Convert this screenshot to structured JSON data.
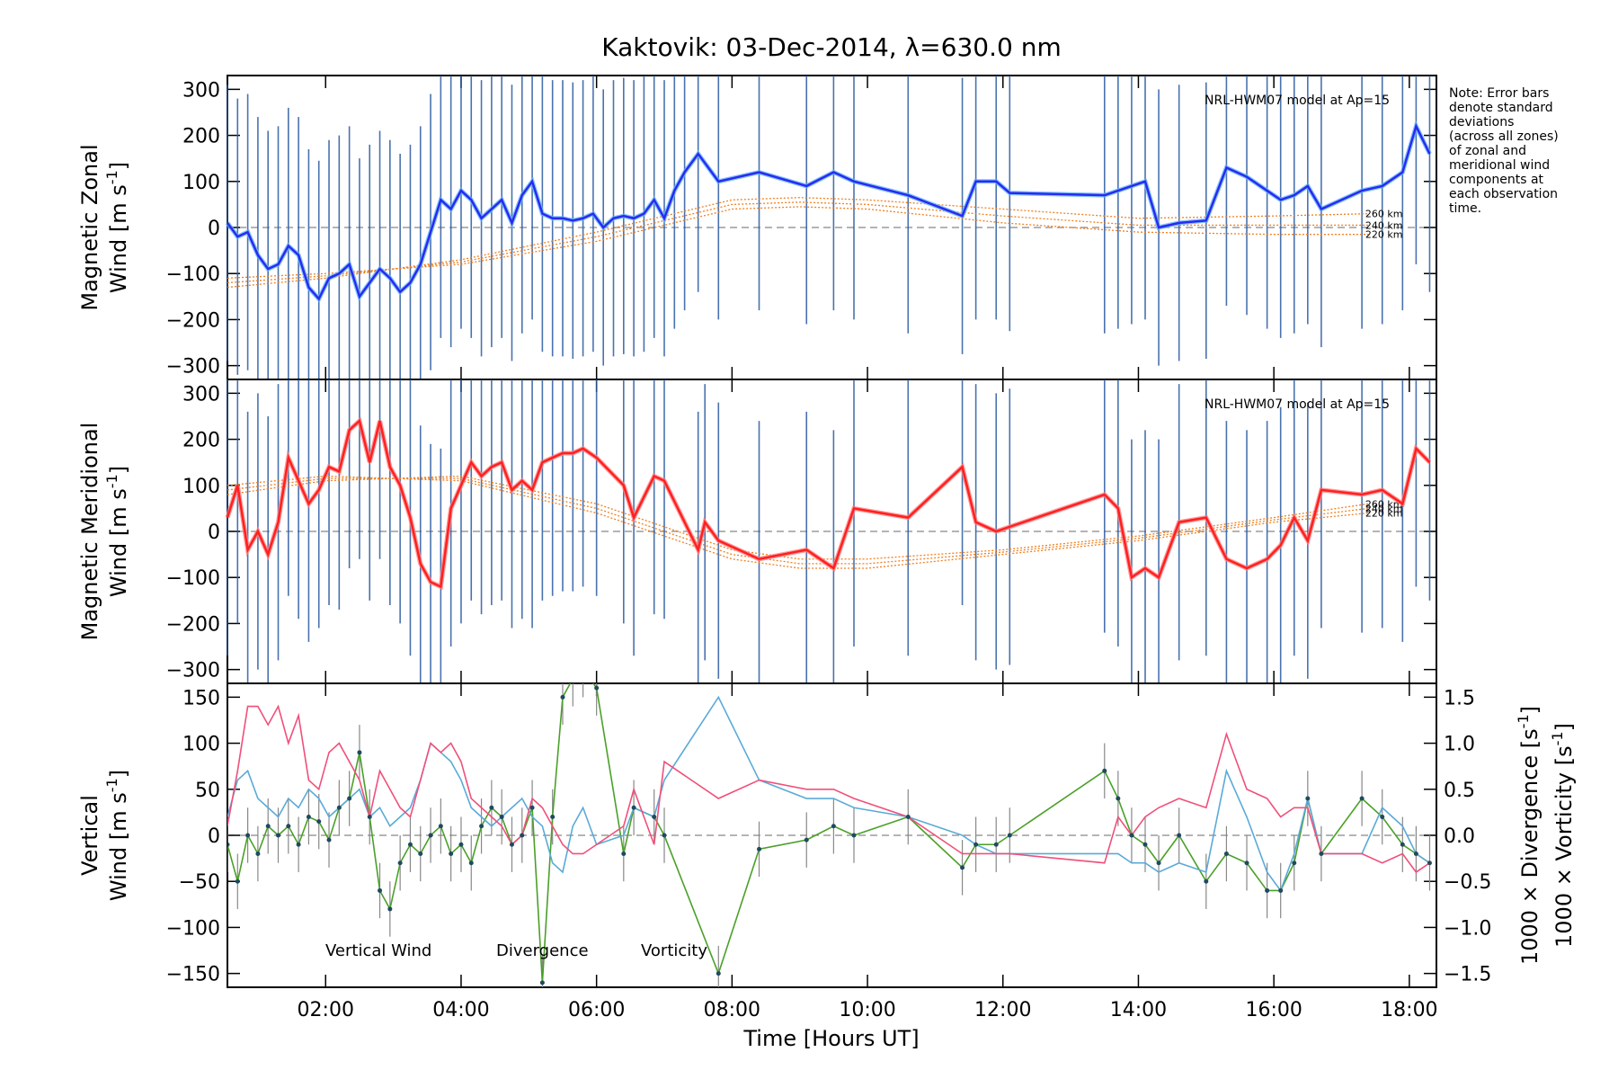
{
  "title": "Kaktovik: 03-Dec-2014, λ=630.0 nm",
  "note": [
    "Note: Error bars",
    "denote standard",
    "deviations",
    "(across all zones)",
    "of zonal and",
    "meridional wind",
    "components at",
    "each observation",
    "time."
  ],
  "colors": {
    "zonal": "#2a2af0",
    "zonal_light": "#5fb4ff",
    "meridional": "#ff2020",
    "meridional_light": "#ff8080",
    "model": "#f08020",
    "errorbar": "#2a5aa0",
    "vertical": "#4aa028",
    "divergence": "#5aaad8",
    "vorticity": "#f0507a"
  },
  "chart_data": [
    {
      "type": "line",
      "panel": "zonal",
      "ylabel_lines": [
        "Magnetic Zonal",
        "Wind [m s",
        "-1",
        "]"
      ],
      "ylim": [
        -330,
        330
      ],
      "yticks": [
        300,
        200,
        100,
        0,
        -100,
        -200,
        -300
      ],
      "xlim": [
        0.55,
        18.4
      ],
      "model_label": "NRL-HWM07 model at Ap=15",
      "model_altitudes": [
        "260 km",
        "240 km",
        "220 km"
      ],
      "series": [
        {
          "name": "zonal",
          "x": [
            0.55,
            0.7,
            0.85,
            1.0,
            1.15,
            1.3,
            1.45,
            1.6,
            1.75,
            1.9,
            2.05,
            2.2,
            2.35,
            2.5,
            2.65,
            2.8,
            2.95,
            3.1,
            3.25,
            3.4,
            3.55,
            3.7,
            3.85,
            4.0,
            4.15,
            4.3,
            4.45,
            4.6,
            4.75,
            4.9,
            5.05,
            5.2,
            5.35,
            5.5,
            5.65,
            5.8,
            5.95,
            6.1,
            6.25,
            6.4,
            6.55,
            6.7,
            6.85,
            7.0,
            7.15,
            7.3,
            7.5,
            7.8,
            8.4,
            9.1,
            9.5,
            9.8,
            10.6,
            11.4,
            11.6,
            11.9,
            12.1,
            13.5,
            13.7,
            13.9,
            14.1,
            14.3,
            14.6,
            15.0,
            15.3,
            15.6,
            15.9,
            16.1,
            16.3,
            16.5,
            16.7,
            17.3,
            17.6,
            17.9,
            18.1,
            18.3
          ],
          "y": [
            10,
            -20,
            -10,
            -60,
            -90,
            -80,
            -40,
            -60,
            -130,
            -155,
            -110,
            -100,
            -80,
            -150,
            -120,
            -90,
            -110,
            -140,
            -120,
            -80,
            -10,
            60,
            40,
            80,
            60,
            20,
            40,
            60,
            10,
            70,
            100,
            30,
            20,
            20,
            15,
            20,
            30,
            0,
            20,
            25,
            20,
            30,
            60,
            20,
            80,
            120,
            160,
            100,
            120,
            90,
            120,
            100,
            70,
            25,
            100,
            100,
            75,
            70,
            80,
            90,
            100,
            0,
            10,
            15,
            130,
            110,
            80,
            60,
            70,
            90,
            40,
            80,
            90,
            120,
            220,
            160
          ]
        }
      ],
      "model": [
        {
          "name": "260 km",
          "x": [
            0.55,
            2,
            4,
            6,
            8,
            9,
            10,
            12,
            14,
            16,
            17.4
          ],
          "y": [
            -130,
            -110,
            -70,
            -10,
            60,
            65,
            60,
            40,
            20,
            25,
            30
          ]
        },
        {
          "name": "240 km",
          "x": [
            0.55,
            2,
            4,
            6,
            8,
            9,
            10,
            12,
            14,
            16,
            17.4
          ],
          "y": [
            -120,
            -105,
            -75,
            -20,
            50,
            55,
            50,
            25,
            5,
            5,
            5
          ]
        },
        {
          "name": "220 km",
          "x": [
            0.55,
            2,
            4,
            6,
            8,
            9,
            10,
            12,
            14,
            16,
            17.4
          ],
          "y": [
            -110,
            -100,
            -80,
            -30,
            40,
            45,
            40,
            10,
            -10,
            -15,
            -15
          ]
        }
      ]
    },
    {
      "type": "line",
      "panel": "meridional",
      "ylabel_lines": [
        "Magnetic Meridional",
        "Wind [m s",
        "-1",
        "]"
      ],
      "ylim": [
        -330,
        330
      ],
      "yticks": [
        300,
        200,
        100,
        0,
        -100,
        -200,
        -300
      ],
      "xlim": [
        0.55,
        18.4
      ],
      "model_label": "NRL-HWM07 model at Ap=15",
      "model_altitudes": [
        "260 km",
        "240 km",
        "220 km"
      ],
      "series": [
        {
          "name": "meridional",
          "x": [
            0.55,
            0.7,
            0.85,
            1.0,
            1.15,
            1.3,
            1.45,
            1.6,
            1.75,
            1.9,
            2.05,
            2.2,
            2.35,
            2.5,
            2.65,
            2.8,
            2.95,
            3.1,
            3.25,
            3.4,
            3.55,
            3.7,
            3.85,
            4.0,
            4.15,
            4.3,
            4.45,
            4.6,
            4.75,
            4.9,
            5.05,
            5.2,
            5.35,
            5.5,
            5.65,
            5.8,
            6.0,
            6.4,
            6.55,
            6.85,
            7.0,
            7.5,
            7.6,
            7.8,
            8.4,
            9.1,
            9.5,
            9.8,
            10.6,
            11.4,
            11.6,
            11.9,
            12.1,
            13.5,
            13.7,
            13.9,
            14.1,
            14.3,
            14.6,
            15.0,
            15.3,
            15.6,
            15.9,
            16.1,
            16.3,
            16.5,
            16.7,
            17.3,
            17.6,
            17.9,
            18.1,
            18.3
          ],
          "y": [
            30,
            100,
            -40,
            0,
            -50,
            20,
            160,
            110,
            60,
            90,
            140,
            130,
            220,
            240,
            150,
            240,
            140,
            100,
            30,
            -70,
            -110,
            -120,
            50,
            100,
            150,
            120,
            140,
            150,
            90,
            110,
            90,
            150,
            160,
            170,
            170,
            180,
            160,
            100,
            30,
            120,
            110,
            -40,
            20,
            -20,
            -60,
            -40,
            -80,
            50,
            30,
            140,
            20,
            0,
            10,
            80,
            50,
            -100,
            -80,
            -100,
            20,
            30,
            -60,
            -80,
            -60,
            -30,
            30,
            -20,
            90,
            80,
            90,
            60,
            180,
            150
          ]
        }
      ],
      "model": [
        {
          "name": "260 km",
          "x": [
            0.55,
            2,
            4,
            6,
            8,
            9,
            10,
            12,
            14,
            16,
            17.4
          ],
          "y": [
            80,
            110,
            120,
            60,
            -40,
            -60,
            -60,
            -40,
            -10,
            30,
            60
          ]
        },
        {
          "name": "240 km",
          "x": [
            0.55,
            2,
            4,
            6,
            8,
            9,
            10,
            12,
            14,
            16,
            17.4
          ],
          "y": [
            90,
            115,
            115,
            50,
            -50,
            -70,
            -70,
            -45,
            -15,
            25,
            50
          ]
        },
        {
          "name": "220 km",
          "x": [
            0.55,
            2,
            4,
            6,
            8,
            9,
            10,
            12,
            14,
            16,
            17.4
          ],
          "y": [
            100,
            120,
            110,
            40,
            -60,
            -80,
            -80,
            -50,
            -20,
            20,
            40
          ]
        }
      ]
    },
    {
      "type": "line",
      "panel": "vertical",
      "ylabel_lines": [
        "Vertical",
        "Wind [m s",
        "-1",
        "]"
      ],
      "ylim": [
        -165,
        165
      ],
      "yticks": [
        150,
        100,
        50,
        0,
        -50,
        -100,
        -150
      ],
      "right_ylim": [
        -1.65,
        1.65
      ],
      "right_yticks": [
        1.5,
        1.0,
        0.5,
        0.0,
        -0.5,
        -1.0,
        -1.5
      ],
      "right_labels": [
        "1000 × Divergence [s",
        "1000 × Vorticity [s",
        "-1",
        "]"
      ],
      "xlim": [
        0.55,
        18.4
      ],
      "xticks": [
        2,
        4,
        6,
        8,
        10,
        12,
        14,
        16,
        18
      ],
      "xtick_labels": [
        "02:00",
        "04:00",
        "06:00",
        "08:00",
        "10:00",
        "12:00",
        "14:00",
        "16:00",
        "18:00"
      ],
      "xlabel": "Time [Hours UT]",
      "legend": [
        "Vertical Wind",
        "Divergence",
        "Vorticity"
      ],
      "series": [
        {
          "name": "Vertical Wind",
          "x": [
            0.55,
            0.7,
            0.85,
            1.0,
            1.15,
            1.3,
            1.45,
            1.6,
            1.75,
            1.9,
            2.05,
            2.2,
            2.35,
            2.5,
            2.65,
            2.8,
            2.95,
            3.1,
            3.25,
            3.4,
            3.55,
            3.7,
            3.85,
            4.0,
            4.15,
            4.3,
            4.45,
            4.6,
            4.75,
            4.9,
            5.05,
            5.2,
            5.35,
            5.5,
            5.65,
            5.8,
            6.0,
            6.4,
            6.55,
            6.85,
            7.0,
            7.8,
            8.4,
            9.1,
            9.5,
            9.8,
            10.6,
            11.4,
            11.6,
            11.9,
            12.1,
            13.5,
            13.7,
            13.9,
            14.1,
            14.3,
            14.6,
            15.0,
            15.3,
            15.6,
            15.9,
            16.1,
            16.3,
            16.5,
            16.7,
            17.3,
            17.6,
            17.9,
            18.1,
            18.3
          ],
          "y": [
            -10,
            -50,
            0,
            -20,
            10,
            0,
            10,
            -10,
            20,
            15,
            -5,
            30,
            40,
            90,
            20,
            -60,
            -80,
            -30,
            -10,
            -20,
            0,
            10,
            -20,
            -10,
            -30,
            10,
            30,
            20,
            -10,
            0,
            30,
            -160,
            20,
            150,
            170,
            180,
            160,
            -20,
            30,
            20,
            0,
            -150,
            -15,
            -5,
            10,
            0,
            20,
            -35,
            -10,
            -10,
            0,
            70,
            40,
            0,
            -10,
            -30,
            0,
            -50,
            -20,
            -30,
            -60,
            -60,
            -30,
            40,
            -20,
            40,
            20,
            -10,
            -20,
            -30
          ]
        },
        {
          "name": "Divergence",
          "x": [
            0.55,
            0.7,
            0.85,
            1.0,
            1.15,
            1.3,
            1.45,
            1.6,
            1.75,
            1.9,
            2.05,
            2.2,
            2.35,
            2.5,
            2.65,
            2.8,
            2.95,
            3.1,
            3.25,
            3.4,
            3.55,
            3.7,
            3.85,
            4.0,
            4.15,
            4.3,
            4.45,
            4.6,
            4.75,
            4.9,
            5.05,
            5.2,
            5.35,
            5.5,
            5.65,
            5.8,
            6.0,
            6.4,
            6.55,
            6.85,
            7.0,
            7.8,
            8.4,
            9.1,
            9.5,
            9.8,
            10.6,
            11.4,
            11.6,
            11.9,
            12.1,
            13.5,
            13.7,
            13.9,
            14.1,
            14.3,
            14.6,
            15.0,
            15.3,
            15.6,
            15.9,
            16.1,
            16.3,
            16.5,
            16.7,
            17.3,
            17.6,
            17.9,
            18.1,
            18.3
          ],
          "y": [
            0.2,
            0.6,
            0.7,
            0.4,
            0.3,
            0.2,
            0.4,
            0.3,
            0.5,
            0.4,
            0.2,
            0.3,
            0.4,
            0.5,
            0.2,
            0.3,
            0.1,
            0.2,
            0.3,
            0.6,
            1.0,
            0.9,
            0.8,
            0.6,
            0.3,
            0.2,
            0.1,
            0.2,
            0.3,
            0.4,
            0.2,
            0.1,
            -0.3,
            -0.4,
            0.1,
            0.3,
            -0.1,
            0.0,
            0.3,
            0.2,
            0.6,
            1.5,
            0.6,
            0.4,
            0.4,
            0.3,
            0.2,
            0.0,
            -0.1,
            -0.2,
            -0.2,
            -0.2,
            -0.2,
            -0.3,
            -0.3,
            -0.4,
            -0.3,
            -0.4,
            0.7,
            0.2,
            -0.4,
            -0.6,
            -0.2,
            0.4,
            -0.2,
            -0.2,
            0.3,
            0.1,
            -0.2,
            -0.3
          ]
        },
        {
          "name": "Vorticity",
          "x": [
            0.55,
            0.7,
            0.85,
            1.0,
            1.15,
            1.3,
            1.45,
            1.6,
            1.75,
            1.9,
            2.05,
            2.2,
            2.35,
            2.5,
            2.65,
            2.8,
            2.95,
            3.1,
            3.25,
            3.4,
            3.55,
            3.7,
            3.85,
            4.0,
            4.15,
            4.3,
            4.45,
            4.6,
            4.75,
            4.9,
            5.05,
            5.2,
            5.35,
            5.5,
            5.65,
            5.8,
            6.0,
            6.4,
            6.55,
            6.85,
            7.0,
            7.8,
            8.4,
            9.1,
            9.5,
            9.8,
            10.6,
            11.4,
            11.6,
            11.9,
            12.1,
            13.5,
            13.7,
            13.9,
            14.1,
            14.3,
            14.6,
            15.0,
            15.3,
            15.6,
            15.9,
            16.1,
            16.3,
            16.5,
            16.7,
            17.3,
            17.6,
            17.9,
            18.1,
            18.3
          ],
          "y": [
            0.1,
            0.7,
            1.4,
            1.4,
            1.2,
            1.4,
            1.0,
            1.3,
            0.6,
            0.5,
            0.9,
            1.0,
            0.8,
            0.6,
            0.2,
            0.7,
            0.5,
            0.3,
            0.2,
            0.6,
            1.0,
            0.9,
            1.0,
            0.8,
            0.4,
            0.3,
            0.2,
            0.1,
            -0.1,
            0.0,
            0.4,
            0.3,
            0.1,
            -0.1,
            -0.2,
            -0.2,
            -0.1,
            0.1,
            0.5,
            -0.1,
            0.8,
            0.4,
            0.6,
            0.5,
            0.5,
            0.4,
            0.2,
            -0.2,
            -0.2,
            -0.2,
            -0.2,
            -0.3,
            0.2,
            0.0,
            0.2,
            0.3,
            0.4,
            0.3,
            1.1,
            0.5,
            0.4,
            0.2,
            0.3,
            0.3,
            -0.2,
            -0.2,
            -0.3,
            -0.2,
            -0.4,
            -0.3
          ]
        }
      ]
    }
  ]
}
